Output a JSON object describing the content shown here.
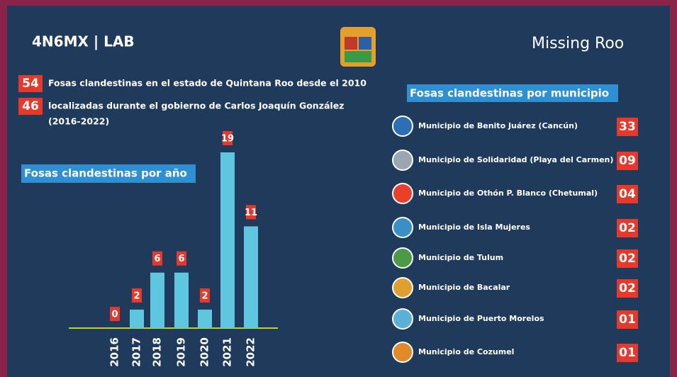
{
  "header": {
    "left_logo": "4N6MX | LAB",
    "right_logo": "Missing Roo"
  },
  "stats": [
    {
      "number": "54",
      "text": "Fosas clandestinas en el estado de Quintana Roo desde el 2010"
    },
    {
      "number": "46",
      "text": "localizadas durante el gobierno de Carlos Joaquín González",
      "text2": "(2016-2022)"
    }
  ],
  "chart_data": {
    "type": "bar",
    "title": "Fosas clandestinas por año",
    "categories": [
      "2016",
      "2017",
      "2018",
      "2019",
      "2020",
      "2021",
      "2022"
    ],
    "values": [
      0,
      2,
      6,
      6,
      2,
      19,
      11
    ],
    "color": "#5ec6df"
  },
  "municipios": {
    "title": "Fosas clandestinas por municipio",
    "rows": [
      {
        "name": "Municipio de Benito Juárez (Cancún)",
        "count": "33"
      },
      {
        "name": "Municipio de Solidaridad (Playa del Carmen)",
        "count": "09"
      },
      {
        "name": "Municipio de Othón P. Blanco (Chetumal)",
        "count": "04"
      },
      {
        "name": "Municipio de Isla Mujeres",
        "count": "02"
      },
      {
        "name": "Municipio de Tulum",
        "count": "02"
      },
      {
        "name": "Municipio de Bacalar",
        "count": "02"
      },
      {
        "name": "Municipio de Puerto Morelos",
        "count": "01"
      },
      {
        "name": "Municipio de Cozumel",
        "count": "01"
      }
    ]
  }
}
